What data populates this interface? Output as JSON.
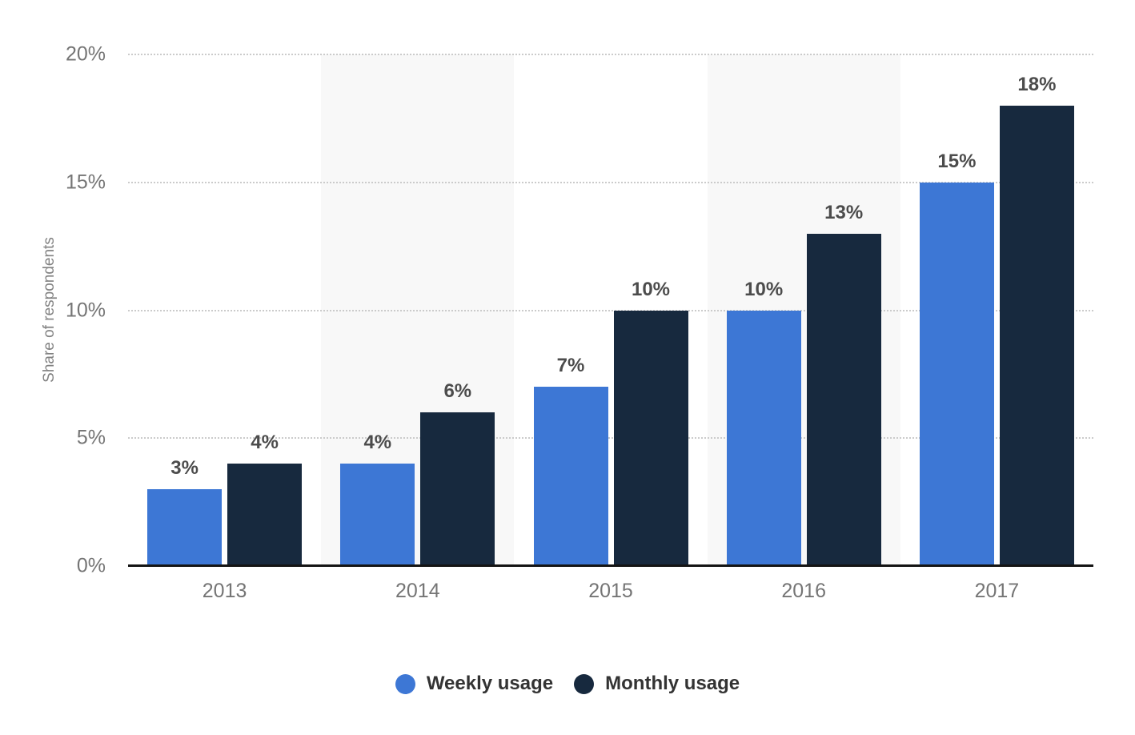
{
  "chart_data": {
    "type": "bar",
    "categories": [
      "2013",
      "2014",
      "2015",
      "2016",
      "2017"
    ],
    "series": [
      {
        "name": "Weekly usage",
        "color": "#3d77d5",
        "values": [
          3,
          4,
          7,
          10,
          15
        ],
        "labels": [
          "3%",
          "4%",
          "7%",
          "10%",
          "15%"
        ]
      },
      {
        "name": "Monthly usage",
        "color": "#17293e",
        "values": [
          4,
          6,
          10,
          13,
          18
        ],
        "labels": [
          "4%",
          "6%",
          "10%",
          "13%",
          "18%"
        ]
      }
    ],
    "ylabel": "Share of respondents",
    "ylim": [
      0,
      20
    ],
    "yticks": [
      0,
      5,
      10,
      15,
      20
    ],
    "ytick_labels": [
      "0%",
      "5%",
      "10%",
      "15%",
      "20%"
    ],
    "grid": "horizontal-dotted",
    "legend_position": "bottom",
    "banded_columns": [
      1,
      3
    ],
    "colors": {
      "band": "#f8f8f8",
      "gridline": "#cbcbcb",
      "axis_line": "#141414",
      "tick_label": "#757575",
      "value_label": "#4c4c4c",
      "y_title": "#828282",
      "legend_text": "#333333"
    }
  }
}
